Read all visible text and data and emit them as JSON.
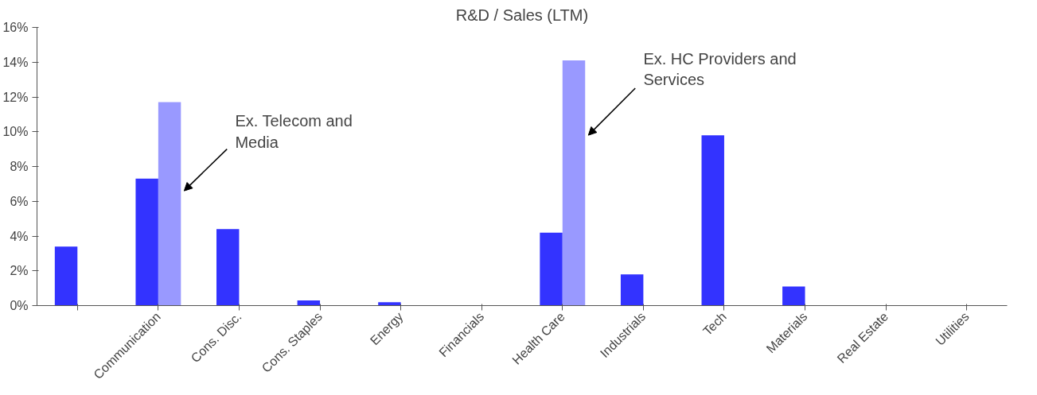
{
  "chart_data": {
    "type": "bar",
    "title": "R&D / Sales (LTM)",
    "categories": [
      null,
      "Communication",
      "Cons. Disc.",
      "Cons. Staples",
      "Energy",
      "Financials",
      "Health Care",
      "Industrials",
      "Tech",
      "Materials",
      "Real Estate",
      "Utilities"
    ],
    "series": [
      {
        "color": "#3333ff",
        "values": [
          3.4,
          7.3,
          4.4,
          0.3,
          0.2,
          0,
          4.2,
          1.8,
          9.8,
          1.1,
          0,
          0
        ]
      },
      {
        "color": "#9999ff",
        "values": [
          null,
          11.7,
          null,
          null,
          null,
          null,
          14.1,
          null,
          null,
          null,
          null,
          null
        ]
      }
    ],
    "ylim": [
      0,
      16
    ],
    "yticks": [
      {
        "value": 0,
        "label": "0%"
      },
      {
        "value": 2,
        "label": "2%"
      },
      {
        "value": 4,
        "label": "4%"
      },
      {
        "value": 6,
        "label": "6%"
      },
      {
        "value": 8,
        "label": "8%"
      },
      {
        "value": 10,
        "label": "10%"
      },
      {
        "value": 12,
        "label": "12%"
      },
      {
        "value": 14,
        "label": "14%"
      },
      {
        "value": 16,
        "label": "16%"
      }
    ],
    "grid": false,
    "annotations": [
      "Ex. Telecom and\nMedia",
      "Ex. HC Providers and\nServices"
    ]
  }
}
